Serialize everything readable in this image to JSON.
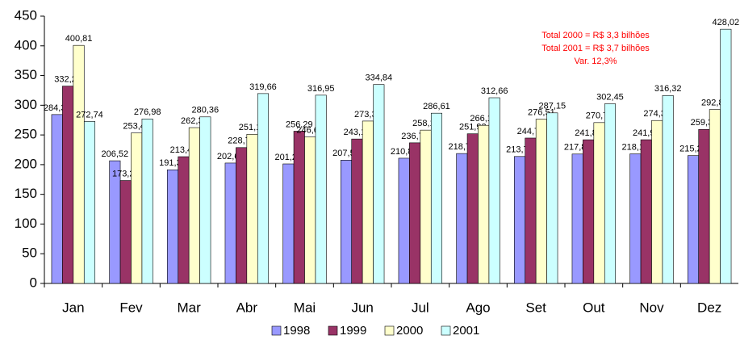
{
  "chart_data": {
    "type": "bar",
    "categories": [
      "Jan",
      "Fev",
      "Mar",
      "Abr",
      "Mai",
      "Jun",
      "Jul",
      "Ago",
      "Set",
      "Out",
      "Nov",
      "Dez"
    ],
    "series": [
      {
        "name": "1998",
        "color": "#9999ff",
        "values": [
          284.34,
          206.52,
          191.33,
          202.66,
          201.21,
          207.54,
          210.81,
          218.7,
          213.72,
          217.85,
          218.13,
          215.21
        ],
        "value_labels": [
          "284,34",
          "206,52",
          "191,33",
          "202,66",
          "201,21",
          "207,54",
          "210,81",
          "218,70",
          "213,72",
          "217,85",
          "218,13",
          "215,21"
        ]
      },
      {
        "name": "1999",
        "color": "#993366",
        "values": [
          332.21,
          173.25,
          213.4,
          228.7,
          256.29,
          243.16,
          236.74,
          251.93,
          244.75,
          241.88,
          241.93,
          259.35
        ],
        "value_labels": [
          "332,21",
          "173,25",
          "213,40",
          "228,70",
          "256,29",
          "243,16",
          "236,74",
          "251,93",
          "244,75",
          "241,88",
          "241,93",
          "259,35"
        ]
      },
      {
        "name": "2000",
        "color": "#ffffcc",
        "values": [
          400.81,
          253.41,
          262.32,
          251.1,
          246.65,
          273.38,
          258.11,
          266.19,
          276.51,
          270.78,
          274.33,
          292.89
        ],
        "value_labels": [
          "400,81",
          "253,41",
          "262,32",
          "251,10",
          "246,65",
          "273,38",
          "258,11",
          "266,19",
          "276,51",
          "270,78",
          "274,33",
          "292,89"
        ]
      },
      {
        "name": "2001",
        "color": "#ccffff",
        "values": [
          272.74,
          276.98,
          280.36,
          319.66,
          316.95,
          334.84,
          286.61,
          312.66,
          287.15,
          302.45,
          316.32,
          428.02
        ],
        "value_labels": [
          "272,74",
          "276,98",
          "280,36",
          "319,66",
          "316,95",
          "334,84",
          "286,61",
          "312,66",
          "287,15",
          "302,45",
          "316,32",
          "428,02"
        ]
      }
    ],
    "annotations": [
      "Total 2000 = R$ 3,3 bilhões",
      "Total 2001 = R$ 3,7 bilhões",
      "Var. 12,3%"
    ],
    "ylim": [
      0,
      450
    ],
    "yticks": [
      0,
      50,
      100,
      150,
      200,
      250,
      300,
      350,
      400,
      450
    ],
    "grid": false
  }
}
